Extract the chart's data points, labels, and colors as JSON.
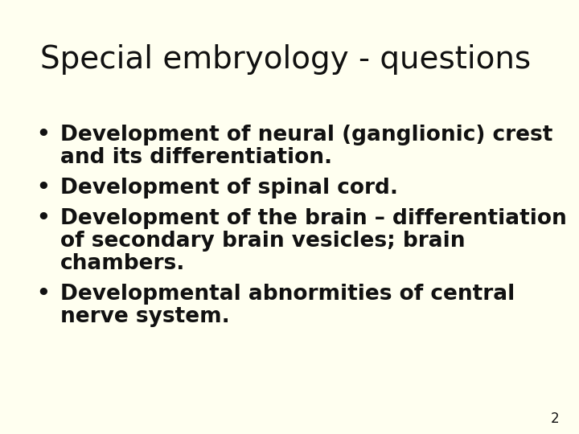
{
  "background_color": "#fffff0",
  "title": "Special embryology - questions",
  "title_fontsize": 28,
  "title_fontweight": "normal",
  "title_color": "#111111",
  "bullet_items": [
    [
      "Development of neural (ganglionic) crest",
      "and its differentiation."
    ],
    [
      "Development of spinal cord."
    ],
    [
      "Development of the brain – differentiation",
      "of secondary brain vesicles; brain",
      "chambers."
    ],
    [
      "Developmental abnormities of central",
      "nerve system."
    ]
  ],
  "bullet_fontsize": 19,
  "bullet_fontweight": "bold",
  "text_color": "#111111",
  "page_number": "2",
  "page_number_fontsize": 12,
  "font_family": "DejaVu Sans"
}
